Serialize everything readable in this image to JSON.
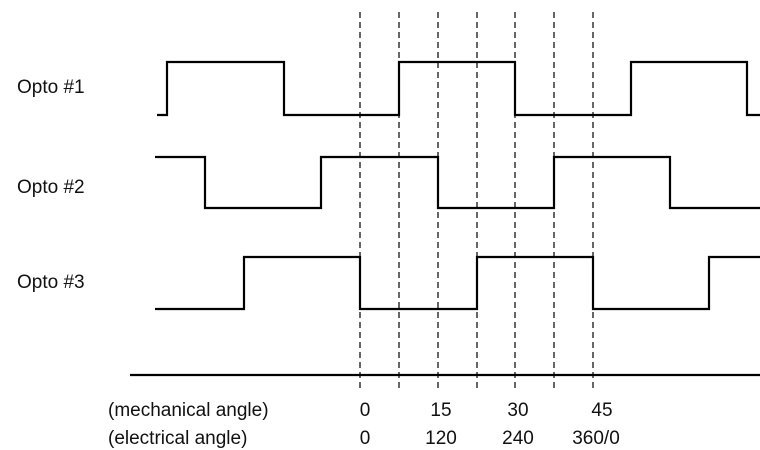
{
  "signals": [
    {
      "label": "Opto #1",
      "transitions": [
        [
          157,
          0
        ],
        [
          167,
          1
        ],
        [
          284,
          0
        ],
        [
          399,
          1
        ],
        [
          515,
          0
        ],
        [
          631,
          1
        ],
        [
          747,
          0
        ],
        [
          760,
          0
        ]
      ]
    },
    {
      "label": "Opto #2",
      "transitions": [
        [
          155,
          1
        ],
        [
          205,
          0
        ],
        [
          321,
          1
        ],
        [
          438,
          0
        ],
        [
          554,
          1
        ],
        [
          670,
          0
        ],
        [
          760,
          0
        ]
      ]
    },
    {
      "label": "Opto #3",
      "transitions": [
        [
          155,
          0
        ],
        [
          244,
          1
        ],
        [
          360,
          0
        ],
        [
          477,
          1
        ],
        [
          593,
          0
        ],
        [
          709,
          1
        ],
        [
          760,
          1
        ]
      ]
    }
  ],
  "guide_lines": [
    360,
    399,
    438,
    477,
    515,
    554,
    593
  ],
  "axis_rows": [
    {
      "name": "mechanical",
      "label": "(mechanical angle)",
      "ticks": [
        {
          "text": "0",
          "x": 365
        },
        {
          "text": "15",
          "x": 441
        },
        {
          "text": "30",
          "x": 518
        },
        {
          "text": "45",
          "x": 602
        }
      ]
    },
    {
      "name": "electrical",
      "label": "(electrical angle)",
      "ticks": [
        {
          "text": "0",
          "x": 365
        },
        {
          "text": "120",
          "x": 441
        },
        {
          "text": "240",
          "x": 518
        },
        {
          "text": "360/0",
          "x": 596
        }
      ]
    }
  ]
}
